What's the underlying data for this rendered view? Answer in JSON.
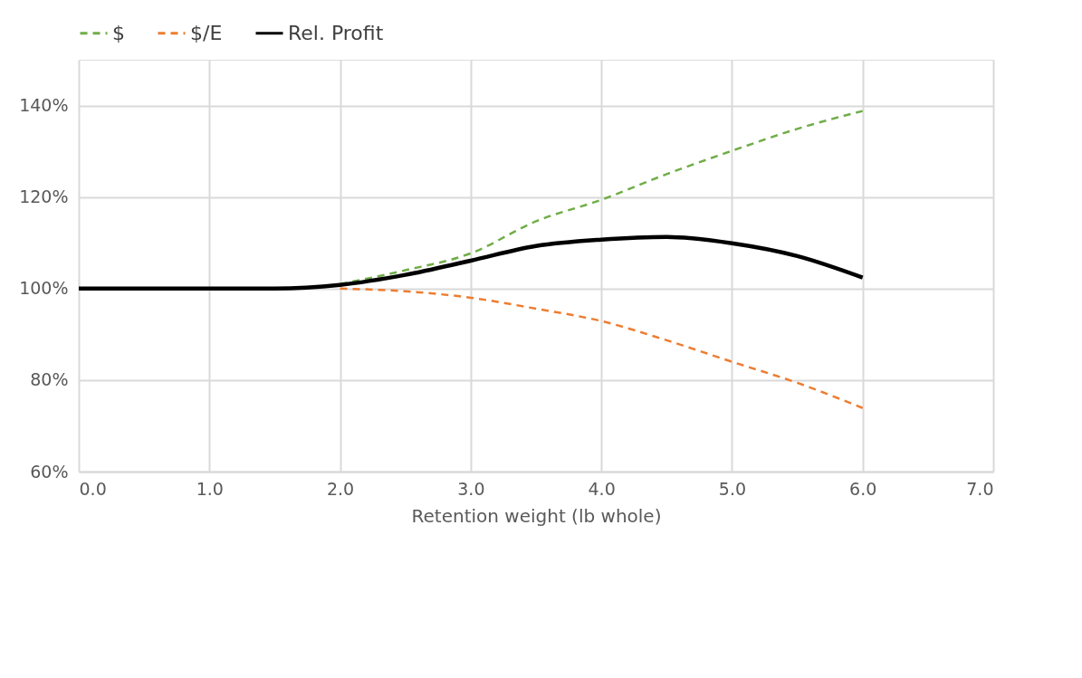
{
  "chart_data": {
    "type": "line",
    "xlabel": "Retention weight (lb whole)",
    "x": [
      0,
      0.5,
      1,
      1.5,
      2,
      2.5,
      3,
      3.5,
      4,
      4.5,
      5,
      5.5,
      6
    ],
    "series": [
      {
        "name": "$",
        "color": "#70ad47",
        "line_style": "dashed",
        "values": [
          null,
          null,
          null,
          null,
          101,
          104,
          107.7,
          114.7,
          119.4,
          125,
          130.1,
          134.9,
          138.8
        ]
      },
      {
        "name": "$/E",
        "color": "#ed7d31",
        "line_style": "dashed",
        "values": [
          null,
          null,
          null,
          null,
          100,
          99.4,
          98,
          95.6,
          92.9,
          88.7,
          84,
          79.4,
          73.9
        ]
      },
      {
        "name": "Rel. Profit",
        "color": "#000000",
        "line_style": "solid",
        "values": [
          100,
          100,
          100,
          100,
          100.8,
          103,
          106.1,
          109.3,
          110.7,
          111.3,
          109.9,
          107.1,
          102.4
        ]
      }
    ],
    "xlim": [
      0,
      7
    ],
    "xticks": [
      {
        "value": 0,
        "label": "0.0"
      },
      {
        "value": 1,
        "label": "1.0"
      },
      {
        "value": 2,
        "label": "2.0"
      },
      {
        "value": 3,
        "label": "3.0"
      },
      {
        "value": 4,
        "label": "4.0"
      },
      {
        "value": 5,
        "label": "5.0"
      },
      {
        "value": 6,
        "label": "6.0"
      },
      {
        "value": 7,
        "label": "7.0"
      }
    ],
    "ylim": [
      60,
      150
    ],
    "yticks": [
      {
        "value": 60,
        "label": "60%"
      },
      {
        "value": 80,
        "label": "80%"
      },
      {
        "value": 100,
        "label": "100%"
      },
      {
        "value": 120,
        "label": "120%"
      },
      {
        "value": 140,
        "label": "140%"
      }
    ],
    "grid": true,
    "legend": "top",
    "marker": "none"
  }
}
